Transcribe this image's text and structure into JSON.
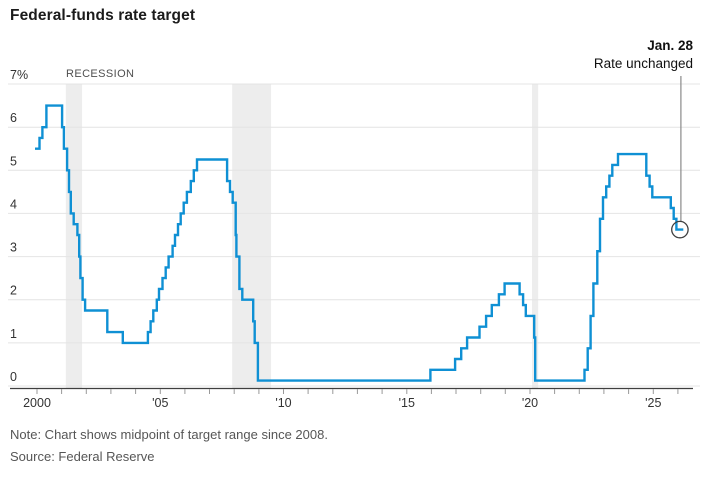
{
  "header": {
    "title": "Federal-funds rate target"
  },
  "annotation": {
    "date_label": "Jan. 28",
    "text": "Rate unchanged"
  },
  "footer": {
    "note": "Note: Chart shows midpoint of target range since 2008.",
    "source": "Source: Federal Reserve"
  },
  "colors": {
    "line": "#0f90d4",
    "recession_band": "#ededed",
    "gridline": "#e4e4e4",
    "axis": "#3f3f3f",
    "minor_tick": "#999999",
    "callout_line": "#8a8a8a",
    "marker_ring": "#3f3f3f",
    "text_dark": "#1b1b1b",
    "text_gray": "#565656"
  },
  "chart_data": {
    "type": "line",
    "step_style": "step-after",
    "title": "Federal-funds rate target",
    "xlabel": "",
    "ylabel": "percent",
    "ylim": [
      0,
      7
    ],
    "xlim": [
      1999.7,
      2026.55
    ],
    "grid": "horizontal-only",
    "legend_position": "none",
    "y_ticks": [
      {
        "value": 7,
        "label": "7%"
      },
      {
        "value": 6,
        "label": "6"
      },
      {
        "value": 5,
        "label": "5"
      },
      {
        "value": 4,
        "label": "4"
      },
      {
        "value": 3,
        "label": "3"
      },
      {
        "value": 2,
        "label": "2"
      },
      {
        "value": 1,
        "label": "1"
      },
      {
        "value": 0,
        "label": "0"
      }
    ],
    "x_labels": [
      {
        "year": 2000,
        "label": "2000"
      },
      {
        "year": 2005,
        "label": "'05"
      },
      {
        "year": 2010,
        "label": "'10"
      },
      {
        "year": 2015,
        "label": "'15"
      },
      {
        "year": 2020,
        "label": "'20"
      },
      {
        "year": 2025,
        "label": "'25"
      }
    ],
    "x_minor_ticks": {
      "from": 2000,
      "to": 2026,
      "step": 1
    },
    "recession_label": "RECESSION",
    "recession_bands": [
      [
        2001.17,
        2001.83
      ],
      [
        2007.92,
        2009.5
      ],
      [
        2020.08,
        2020.33
      ]
    ],
    "series": [
      {
        "name": "Federal-funds rate target (midpoint of range since 2008)",
        "color": "#0f90d4",
        "points": [
          [
            1999.92,
            5.5
          ],
          [
            2000.1,
            5.75
          ],
          [
            2000.22,
            6.0
          ],
          [
            2000.38,
            6.5
          ],
          [
            2001.02,
            6.0
          ],
          [
            2001.09,
            5.5
          ],
          [
            2001.22,
            5.0
          ],
          [
            2001.3,
            4.5
          ],
          [
            2001.37,
            4.0
          ],
          [
            2001.49,
            3.75
          ],
          [
            2001.64,
            3.5
          ],
          [
            2001.71,
            3.0
          ],
          [
            2001.76,
            2.5
          ],
          [
            2001.85,
            2.0
          ],
          [
            2001.95,
            1.75
          ],
          [
            2002.85,
            1.25
          ],
          [
            2003.48,
            1.0
          ],
          [
            2004.5,
            1.25
          ],
          [
            2004.61,
            1.5
          ],
          [
            2004.72,
            1.75
          ],
          [
            2004.86,
            2.0
          ],
          [
            2004.95,
            2.25
          ],
          [
            2005.09,
            2.5
          ],
          [
            2005.22,
            2.75
          ],
          [
            2005.34,
            3.0
          ],
          [
            2005.5,
            3.25
          ],
          [
            2005.6,
            3.5
          ],
          [
            2005.72,
            3.75
          ],
          [
            2005.83,
            4.0
          ],
          [
            2005.95,
            4.25
          ],
          [
            2006.08,
            4.5
          ],
          [
            2006.24,
            4.75
          ],
          [
            2006.36,
            5.0
          ],
          [
            2006.49,
            5.25
          ],
          [
            2007.71,
            4.75
          ],
          [
            2007.83,
            4.5
          ],
          [
            2007.94,
            4.25
          ],
          [
            2008.06,
            3.5
          ],
          [
            2008.09,
            3.0
          ],
          [
            2008.21,
            2.25
          ],
          [
            2008.33,
            2.0
          ],
          [
            2008.77,
            1.5
          ],
          [
            2008.83,
            1.0
          ],
          [
            2008.96,
            0.125
          ],
          [
            2015.96,
            0.375
          ],
          [
            2016.96,
            0.625
          ],
          [
            2017.21,
            0.875
          ],
          [
            2017.45,
            1.125
          ],
          [
            2017.95,
            1.375
          ],
          [
            2018.22,
            1.625
          ],
          [
            2018.45,
            1.875
          ],
          [
            2018.74,
            2.125
          ],
          [
            2018.97,
            2.375
          ],
          [
            2019.58,
            2.125
          ],
          [
            2019.72,
            1.875
          ],
          [
            2019.83,
            1.625
          ],
          [
            2020.17,
            1.125
          ],
          [
            2020.21,
            0.125
          ],
          [
            2022.21,
            0.375
          ],
          [
            2022.34,
            0.875
          ],
          [
            2022.46,
            1.625
          ],
          [
            2022.57,
            2.375
          ],
          [
            2022.73,
            3.125
          ],
          [
            2022.84,
            3.875
          ],
          [
            2022.96,
            4.375
          ],
          [
            2023.09,
            4.625
          ],
          [
            2023.22,
            4.875
          ],
          [
            2023.34,
            5.125
          ],
          [
            2023.57,
            5.375
          ],
          [
            2024.72,
            4.875
          ],
          [
            2024.85,
            4.625
          ],
          [
            2024.96,
            4.375
          ],
          [
            2025.71,
            4.125
          ],
          [
            2025.83,
            3.875
          ],
          [
            2025.94,
            3.625
          ],
          [
            2026.22,
            3.625
          ]
        ]
      }
    ],
    "end_marker": {
      "x": 2026.08,
      "y": 3.625,
      "label": "Jan. 28",
      "sublabel": "Rate unchanged"
    }
  }
}
